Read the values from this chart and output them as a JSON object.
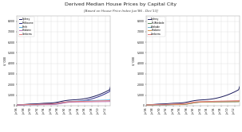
{
  "title": "Derived Median House Prices by Capital City",
  "subtitle": "[Based on House Price Index Jun'86 - Dec'13]",
  "ylabel": "$ '000",
  "ylim_left": [
    0,
    8500
  ],
  "ylim_right": [
    0,
    8500
  ],
  "yticks": [
    0,
    1000,
    2000,
    3000,
    4000,
    5000,
    6000,
    7000,
    8000
  ],
  "legend_cities_left": [
    "Sydney",
    "Melbourne",
    "Perth",
    "Brisbane",
    "Canberra"
  ],
  "legend_cities_right": [
    "Sydney",
    "Br./Adelaide",
    "Adelaide",
    "Brisbane",
    "Canberra"
  ],
  "colors_left": [
    "#1a1a5c",
    "#2e2e8c",
    "#56b4e9",
    "#bb77bb",
    "#e87878"
  ],
  "colors_right": [
    "#1a1a5c",
    "#5a8a5a",
    "#6ab0c8",
    "#d4914a",
    "#e07878"
  ],
  "background_color": "#ffffff",
  "grid_color": "#cccccc",
  "num_points": 111,
  "sydney": [
    65,
    67,
    70,
    73,
    77,
    82,
    88,
    95,
    101,
    108,
    115,
    122,
    129,
    135,
    141,
    146,
    150,
    153,
    156,
    159,
    162,
    165,
    168,
    172,
    176,
    181,
    186,
    192,
    198,
    204,
    210,
    216,
    221,
    226,
    230,
    233,
    236,
    238,
    240,
    243,
    247,
    252,
    259,
    267,
    277,
    288,
    301,
    315,
    330,
    346,
    362,
    379,
    396,
    413,
    429,
    444,
    458,
    471,
    483,
    494,
    504,
    513,
    521,
    528,
    534,
    539,
    544,
    549,
    554,
    559,
    564,
    570,
    576,
    583,
    591,
    600,
    610,
    621,
    633,
    646,
    660,
    675,
    691,
    708,
    726,
    745,
    765,
    786,
    808,
    831,
    855,
    880,
    906,
    933,
    961,
    990,
    1020,
    1051,
    1083,
    1116,
    1150,
    1185,
    1221,
    1258,
    1296,
    1336,
    1377,
    1419,
    1463,
    1508,
    1800
  ],
  "melbourne": [
    56,
    57,
    59,
    62,
    65,
    68,
    72,
    76,
    80,
    84,
    88,
    92,
    96,
    99,
    102,
    105,
    107,
    108,
    109,
    110,
    111,
    112,
    114,
    116,
    119,
    122,
    126,
    130,
    134,
    138,
    142,
    146,
    149,
    152,
    155,
    157,
    158,
    159,
    160,
    161,
    163,
    166,
    170,
    175,
    182,
    190,
    199,
    210,
    221,
    233,
    246,
    259,
    272,
    285,
    297,
    308,
    318,
    327,
    335,
    342,
    348,
    353,
    358,
    362,
    366,
    370,
    374,
    378,
    382,
    387,
    392,
    398,
    405,
    412,
    420,
    429,
    439,
    450,
    462,
    475,
    489,
    504,
    520,
    537,
    555,
    574,
    594,
    615,
    637,
    660,
    684,
    709,
    735,
    762,
    790,
    819,
    849,
    880,
    912,
    945,
    979,
    1014,
    1050,
    1087,
    1125,
    1164,
    1204,
    1245,
    1287,
    1330,
    1600
  ],
  "perth": [
    50,
    51,
    52,
    54,
    56,
    58,
    60,
    63,
    66,
    69,
    72,
    74,
    76,
    78,
    79,
    79,
    79,
    78,
    77,
    76,
    76,
    76,
    77,
    78,
    80,
    82,
    85,
    88,
    91,
    94,
    97,
    100,
    103,
    106,
    108,
    110,
    111,
    112,
    112,
    112,
    113,
    114,
    117,
    120,
    125,
    131,
    139,
    148,
    159,
    171,
    185,
    200,
    216,
    233,
    250,
    268,
    286,
    303,
    319,
    334,
    348,
    360,
    371,
    381,
    389,
    396,
    402,
    407,
    411,
    415,
    419,
    422,
    425,
    428,
    431,
    434,
    437,
    440,
    443,
    446,
    449,
    452,
    455,
    458,
    461,
    464,
    467,
    470,
    473,
    476,
    479,
    482,
    485,
    488,
    491,
    494,
    497,
    500,
    503,
    506,
    509,
    512,
    515,
    518,
    521,
    524,
    527,
    530,
    533,
    536,
    600
  ],
  "brisbane": [
    48,
    49,
    50,
    51,
    53,
    55,
    57,
    59,
    62,
    64,
    67,
    69,
    71,
    73,
    74,
    75,
    75,
    74,
    74,
    73,
    73,
    73,
    74,
    75,
    76,
    78,
    80,
    82,
    85,
    87,
    90,
    92,
    94,
    96,
    97,
    98,
    99,
    100,
    100,
    101,
    102,
    104,
    107,
    110,
    115,
    121,
    129,
    138,
    148,
    159,
    172,
    185,
    199,
    214,
    228,
    243,
    257,
    270,
    282,
    293,
    302,
    310,
    317,
    323,
    328,
    332,
    335,
    337,
    339,
    340,
    341,
    342,
    343,
    344,
    345,
    346,
    347,
    348,
    349,
    350,
    351,
    352,
    353,
    354,
    355,
    356,
    357,
    358,
    359,
    360,
    361,
    362,
    363,
    364,
    365,
    366,
    367,
    368,
    369,
    370,
    371,
    372,
    373,
    374,
    375,
    376,
    377,
    378,
    379,
    380,
    420
  ],
  "canberra": [
    58,
    59,
    61,
    63,
    66,
    69,
    72,
    76,
    80,
    84,
    88,
    92,
    95,
    98,
    101,
    103,
    104,
    105,
    105,
    105,
    105,
    106,
    107,
    109,
    111,
    114,
    118,
    122,
    126,
    130,
    134,
    138,
    141,
    144,
    147,
    149,
    150,
    151,
    152,
    153,
    155,
    158,
    162,
    167,
    174,
    182,
    192,
    203,
    215,
    228,
    242,
    256,
    270,
    284,
    297,
    310,
    321,
    332,
    341,
    349,
    356,
    362,
    367,
    371,
    375,
    378,
    381,
    383,
    385,
    387,
    389,
    391,
    393,
    395,
    397,
    399,
    401,
    403,
    405,
    407,
    409,
    411,
    413,
    415,
    417,
    419,
    421,
    423,
    425,
    427,
    429,
    431,
    433,
    435,
    437,
    439,
    441,
    443,
    445,
    447,
    449,
    451,
    453,
    455,
    457,
    459,
    461,
    463,
    465,
    467,
    500
  ],
  "adelaide": [
    44,
    45,
    46,
    47,
    49,
    50,
    52,
    54,
    56,
    58,
    60,
    62,
    64,
    65,
    66,
    67,
    67,
    67,
    66,
    66,
    66,
    66,
    66,
    67,
    68,
    70,
    72,
    74,
    76,
    79,
    81,
    84,
    86,
    88,
    90,
    91,
    92,
    93,
    93,
    94,
    95,
    97,
    100,
    104,
    109,
    115,
    123,
    132,
    142,
    153,
    165,
    178,
    192,
    206,
    220,
    234,
    247,
    260,
    271,
    282,
    291,
    299,
    306,
    312,
    317,
    321,
    325,
    328,
    330,
    332,
    334,
    336,
    337,
    338,
    340,
    341,
    342,
    343,
    344,
    345,
    346,
    347,
    348,
    349,
    350,
    351,
    352,
    353,
    354,
    355,
    356,
    357,
    358,
    359,
    360,
    361,
    362,
    363,
    364,
    365,
    366,
    367,
    368,
    369,
    370,
    371,
    372,
    373,
    374,
    375,
    410
  ]
}
